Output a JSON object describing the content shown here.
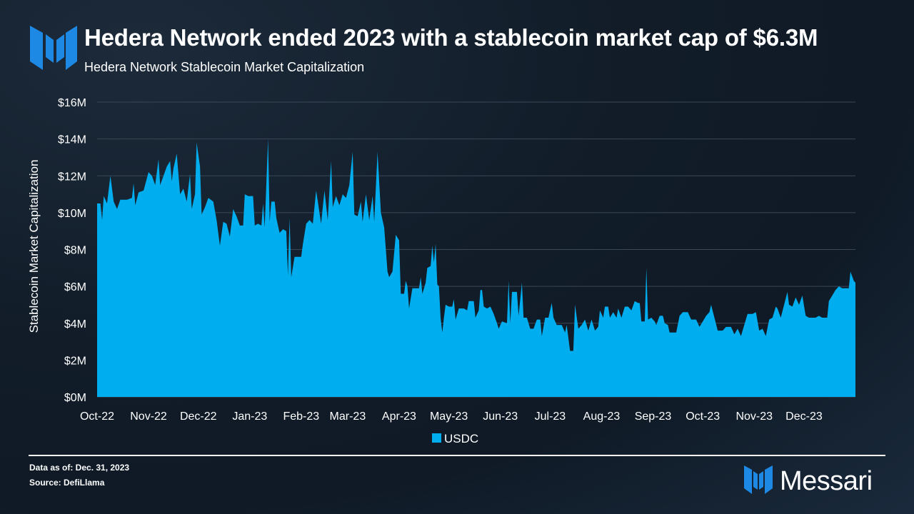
{
  "header": {
    "title": "Hedera Network ended 2023 with a stablecoin market cap of $6.3M",
    "subtitle": "Hedera Network Stablecoin Market Capitalization"
  },
  "footer": {
    "data_as_of": "Data as of: Dec. 31, 2023",
    "source": "Source: DefiLlama",
    "brand": "Messari"
  },
  "colors": {
    "series": "#00aeef",
    "logo": "#1e88e5",
    "grid": "#3a4757"
  },
  "chart_data": {
    "type": "area",
    "title": "Hedera Network Stablecoin Market Capitalization",
    "xlabel": "",
    "ylabel": "Stablecoin Market Capitalization",
    "ylim": [
      0,
      16
    ],
    "yunit": "$M",
    "yticks": [
      "$0M",
      "$2M",
      "$4M",
      "$6M",
      "$8M",
      "$10M",
      "$12M",
      "$14M",
      "$16M"
    ],
    "xticks": [
      "Oct-22",
      "Nov-22",
      "Dec-22",
      "Jan-23",
      "Feb-23",
      "Mar-23",
      "Apr-23",
      "May-23",
      "Jun-23",
      "Jul-23",
      "Aug-23",
      "Sep-23",
      "Oct-23",
      "Nov-23",
      "Dec-23"
    ],
    "legend": "bottom-center",
    "grid": true,
    "series": [
      {
        "name": "USDC",
        "x_start": "2022-10-01",
        "x_end": "2023-12-31",
        "points": [
          [
            0,
            10.5
          ],
          [
            2,
            10.5
          ],
          [
            3,
            9.6
          ],
          [
            4,
            10.9
          ],
          [
            6,
            10.5
          ],
          [
            8,
            12.0
          ],
          [
            10,
            10.6
          ],
          [
            12,
            10.2
          ],
          [
            14,
            10.7
          ],
          [
            18,
            10.7
          ],
          [
            21,
            10.8
          ],
          [
            22,
            11.6
          ],
          [
            23,
            10.4
          ],
          [
            25,
            11.1
          ],
          [
            28,
            11.2
          ],
          [
            31,
            12.2
          ],
          [
            33,
            12.0
          ],
          [
            35,
            11.5
          ],
          [
            37,
            12.9
          ],
          [
            38,
            11.5
          ],
          [
            40,
            12.0
          ],
          [
            42,
            12.5
          ],
          [
            44,
            12.8
          ],
          [
            45,
            11.7
          ],
          [
            46,
            12.4
          ],
          [
            48,
            13.2
          ],
          [
            50,
            11.0
          ],
          [
            52,
            11.3
          ],
          [
            54,
            10.6
          ],
          [
            56,
            12.1
          ],
          [
            57,
            10.2
          ],
          [
            59,
            11.0
          ],
          [
            60,
            13.8
          ],
          [
            62,
            12.5
          ],
          [
            63,
            9.9
          ],
          [
            65,
            10.3
          ],
          [
            67,
            10.8
          ],
          [
            70,
            10.6
          ],
          [
            72,
            9.6
          ],
          [
            74,
            8.2
          ],
          [
            76,
            9.5
          ],
          [
            78,
            9.4
          ],
          [
            80,
            8.7
          ],
          [
            82,
            10.2
          ],
          [
            84,
            9.8
          ],
          [
            86,
            9.3
          ],
          [
            88,
            9.3
          ],
          [
            89,
            11.0
          ],
          [
            91,
            10.9
          ],
          [
            94,
            10.9
          ],
          [
            95,
            9.3
          ],
          [
            97,
            9.4
          ],
          [
            99,
            9.3
          ],
          [
            100,
            10.5
          ],
          [
            101,
            9.2
          ],
          [
            103,
            14.0
          ],
          [
            104,
            9.5
          ],
          [
            105,
            10.6
          ],
          [
            107,
            10.6
          ],
          [
            108,
            9.7
          ],
          [
            110,
            8.9
          ],
          [
            112,
            9.1
          ],
          [
            114,
            9.0
          ],
          [
            115,
            6.6
          ],
          [
            116,
            9.7
          ],
          [
            117,
            6.5
          ],
          [
            119,
            7.6
          ],
          [
            123,
            7.6
          ],
          [
            124,
            8.3
          ],
          [
            126,
            9.4
          ],
          [
            128,
            9.6
          ],
          [
            130,
            9.4
          ],
          [
            132,
            11.2
          ],
          [
            133,
            10.6
          ],
          [
            135,
            9.4
          ],
          [
            137,
            11.2
          ],
          [
            139,
            9.6
          ],
          [
            141,
            12.8
          ],
          [
            142,
            10.3
          ],
          [
            144,
            10.9
          ],
          [
            146,
            10.4
          ],
          [
            148,
            11.0
          ],
          [
            150,
            10.8
          ],
          [
            152,
            11.5
          ],
          [
            154,
            13.3
          ],
          [
            155,
            9.9
          ],
          [
            157,
            9.8
          ],
          [
            159,
            10.6
          ],
          [
            160,
            9.5
          ],
          [
            162,
            11.0
          ],
          [
            164,
            9.6
          ],
          [
            166,
            10.9
          ],
          [
            167,
            9.5
          ],
          [
            169,
            13.3
          ],
          [
            171,
            10.0
          ],
          [
            173,
            9.2
          ],
          [
            175,
            6.8
          ],
          [
            176,
            6.5
          ],
          [
            178,
            6.8
          ],
          [
            180,
            8.8
          ],
          [
            182,
            8.5
          ],
          [
            183,
            5.6
          ],
          [
            185,
            5.6
          ],
          [
            186,
            6.3
          ],
          [
            187,
            6.0
          ],
          [
            188,
            4.8
          ],
          [
            190,
            5.9
          ],
          [
            192,
            5.9
          ],
          [
            194,
            5.9
          ],
          [
            195,
            6.5
          ],
          [
            196,
            5.6
          ],
          [
            198,
            6.2
          ],
          [
            199,
            7.0
          ],
          [
            201,
            7.1
          ],
          [
            202,
            8.2
          ],
          [
            203,
            7.3
          ],
          [
            204,
            8.3
          ],
          [
            205,
            6.1
          ],
          [
            206,
            6.0
          ],
          [
            207,
            4.3
          ],
          [
            208,
            3.5
          ],
          [
            209,
            4.3
          ],
          [
            210,
            5.0
          ],
          [
            212,
            4.9
          ],
          [
            214,
            4.9
          ],
          [
            215,
            5.3
          ],
          [
            216,
            4.2
          ],
          [
            218,
            4.8
          ],
          [
            221,
            4.8
          ],
          [
            223,
            4.7
          ],
          [
            224,
            5.2
          ],
          [
            227,
            5.2
          ],
          [
            228,
            4.3
          ],
          [
            230,
            4.7
          ],
          [
            231,
            5.8
          ],
          [
            232,
            5.8
          ],
          [
            233,
            4.9
          ],
          [
            235,
            4.8
          ],
          [
            237,
            4.9
          ],
          [
            239,
            4.5
          ],
          [
            241,
            4.0
          ],
          [
            242,
            3.7
          ],
          [
            244,
            4.1
          ],
          [
            247,
            4.0
          ],
          [
            248,
            6.3
          ],
          [
            249,
            4.0
          ],
          [
            250,
            5.7
          ],
          [
            253,
            5.7
          ],
          [
            254,
            4.4
          ],
          [
            256,
            6.2
          ],
          [
            257,
            4.3
          ],
          [
            259,
            4.3
          ],
          [
            261,
            3.7
          ],
          [
            263,
            3.7
          ],
          [
            265,
            4.2
          ],
          [
            267,
            4.2
          ],
          [
            268,
            3.3
          ],
          [
            270,
            4.3
          ],
          [
            272,
            4.3
          ],
          [
            274,
            5.1
          ],
          [
            275,
            4.3
          ],
          [
            277,
            3.9
          ],
          [
            280,
            3.9
          ],
          [
            282,
            3.5
          ],
          [
            283,
            3.9
          ],
          [
            285,
            2.5
          ],
          [
            287,
            2.5
          ],
          [
            288,
            5.0
          ],
          [
            290,
            3.7
          ],
          [
            292,
            3.9
          ],
          [
            294,
            4.2
          ],
          [
            296,
            3.6
          ],
          [
            298,
            4.2
          ],
          [
            300,
            3.6
          ],
          [
            302,
            3.8
          ],
          [
            303,
            4.7
          ],
          [
            305,
            4.3
          ],
          [
            306,
            4.9
          ],
          [
            308,
            4.9
          ],
          [
            309,
            4.3
          ],
          [
            311,
            4.6
          ],
          [
            313,
            4.3
          ],
          [
            314,
            4.8
          ],
          [
            316,
            4.3
          ],
          [
            318,
            4.9
          ],
          [
            320,
            4.9
          ],
          [
            322,
            4.7
          ],
          [
            324,
            5.2
          ],
          [
            326,
            5.1
          ],
          [
            327,
            5.1
          ],
          [
            328,
            4.1
          ],
          [
            330,
            4.1
          ],
          [
            331,
            7.0
          ],
          [
            332,
            4.2
          ],
          [
            334,
            4.3
          ],
          [
            336,
            4.1
          ],
          [
            337,
            3.9
          ],
          [
            339,
            4.4
          ],
          [
            341,
            4.4
          ],
          [
            342,
            4.0
          ],
          [
            344,
            3.9
          ],
          [
            345,
            3.5
          ],
          [
            349,
            3.5
          ],
          [
            351,
            4.4
          ],
          [
            353,
            4.6
          ],
          [
            356,
            4.6
          ],
          [
            358,
            4.2
          ],
          [
            361,
            4.2
          ],
          [
            363,
            3.8
          ],
          [
            365,
            4.1
          ],
          [
            367,
            4.4
          ],
          [
            369,
            4.6
          ],
          [
            370,
            5.0
          ],
          [
            372,
            4.3
          ],
          [
            374,
            3.6
          ],
          [
            377,
            3.6
          ],
          [
            379,
            3.8
          ],
          [
            382,
            3.8
          ],
          [
            384,
            3.4
          ],
          [
            386,
            3.7
          ],
          [
            388,
            3.3
          ],
          [
            390,
            3.9
          ],
          [
            392,
            4.5
          ],
          [
            395,
            4.5
          ],
          [
            397,
            4.6
          ],
          [
            399,
            3.6
          ],
          [
            401,
            3.7
          ],
          [
            403,
            3.3
          ],
          [
            405,
            4.2
          ],
          [
            407,
            4.3
          ],
          [
            409,
            4.9
          ],
          [
            410,
            4.8
          ],
          [
            412,
            4.3
          ],
          [
            414,
            5.0
          ],
          [
            416,
            5.7
          ],
          [
            417,
            5.0
          ],
          [
            419,
            4.9
          ],
          [
            421,
            5.4
          ],
          [
            423,
            5.0
          ],
          [
            425,
            5.5
          ],
          [
            427,
            4.4
          ],
          [
            429,
            4.3
          ],
          [
            433,
            4.3
          ],
          [
            435,
            4.4
          ],
          [
            437,
            4.3
          ],
          [
            440,
            4.3
          ],
          [
            441,
            5.2
          ],
          [
            443,
            5.5
          ],
          [
            445,
            5.8
          ],
          [
            447,
            6.0
          ],
          [
            449,
            5.9
          ],
          [
            453,
            5.9
          ],
          [
            454,
            6.8
          ],
          [
            456,
            6.3
          ],
          [
            457,
            6.2
          ]
        ]
      }
    ]
  }
}
